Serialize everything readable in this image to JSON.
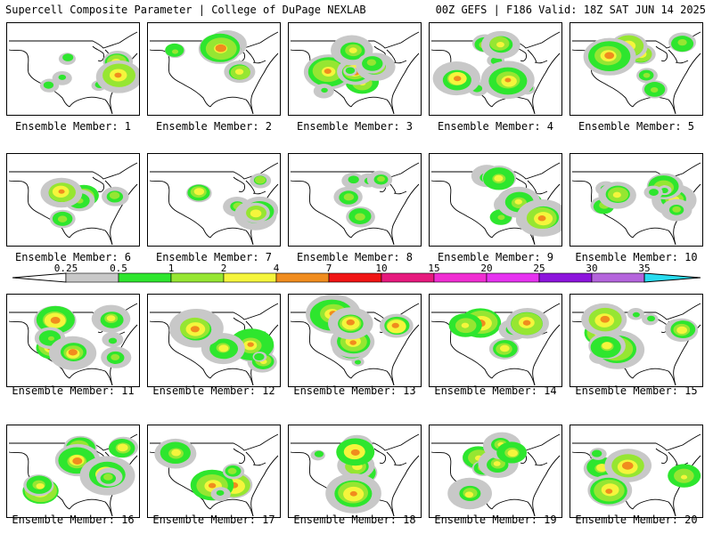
{
  "header": {
    "title": "Supercell Composite Parameter | College of DuPage NEXLAB",
    "run_info": "00Z GEFS | F186 Valid: 18Z SAT JUN 14 2025"
  },
  "legend": {
    "thresholds": [
      "0.25",
      "0.5",
      "1",
      "2",
      "4",
      "7",
      "10",
      "15",
      "20",
      "25",
      "30",
      "35"
    ],
    "colors": [
      "#c8c8c8",
      "#2ee62e",
      "#96e632",
      "#f5f53c",
      "#f08c1e",
      "#f01414",
      "#e6197d",
      "#f02dd2",
      "#e632f0",
      "#8c14dc",
      "#b464dc",
      "#28dcf0"
    ]
  },
  "members": [
    {
      "label": "Ensemble Member: 1"
    },
    {
      "label": "Ensemble Member: 2"
    },
    {
      "label": "Ensemble Member: 3"
    },
    {
      "label": "Ensemble Member: 4"
    },
    {
      "label": "Ensemble Member: 5"
    },
    {
      "label": "Ensemble Member: 6"
    },
    {
      "label": "Ensemble Member: 7"
    },
    {
      "label": "Ensemble Member: 8"
    },
    {
      "label": "Ensemble Member: 9"
    },
    {
      "label": "Ensemble Member: 10"
    },
    {
      "label": "Ensemble Member: 11"
    },
    {
      "label": "Ensemble Member: 12"
    },
    {
      "label": "Ensemble Member: 13"
    },
    {
      "label": "Ensemble Member: 14"
    },
    {
      "label": "Ensemble Member: 15"
    },
    {
      "label": "Ensemble Member: 16"
    },
    {
      "label": "Ensemble Member: 17"
    },
    {
      "label": "Ensemble Member: 18"
    },
    {
      "label": "Ensemble Member: 19"
    },
    {
      "label": "Ensemble Member: 20"
    }
  ]
}
